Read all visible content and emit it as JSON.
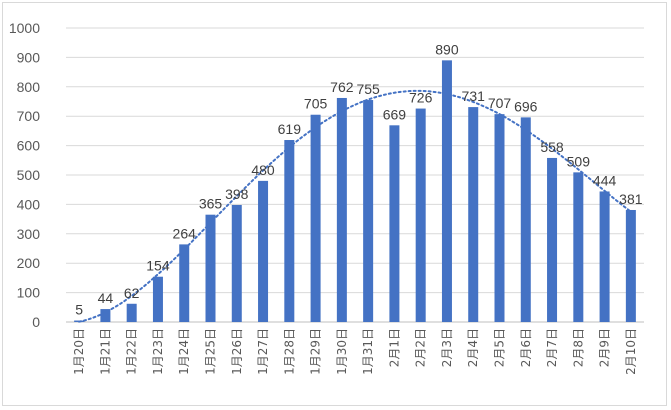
{
  "chart_data": {
    "type": "bar",
    "title": "",
    "xlabel": "",
    "ylabel": "",
    "ylim": [
      0,
      1000
    ],
    "yticks": [
      0,
      100,
      200,
      300,
      400,
      500,
      600,
      700,
      800,
      900,
      1000
    ],
    "grid": true,
    "legend": "none",
    "bar_color": "#4472c4",
    "trendline": {
      "style": "dotted",
      "color": "#4472c4",
      "type": "polynomial"
    },
    "categories": [
      "1月20日",
      "1月21日",
      "1月22日",
      "1月23日",
      "1月24日",
      "1月25日",
      "1月26日",
      "1月27日",
      "1月28日",
      "1月29日",
      "1月30日",
      "1月31日",
      "2月1日",
      "2月2日",
      "2月3日",
      "2月4日",
      "2月5日",
      "2月6日",
      "2月7日",
      "2月8日",
      "2月9日",
      "2月10日"
    ],
    "values": [
      5,
      44,
      62,
      154,
      264,
      365,
      398,
      480,
      619,
      705,
      762,
      755,
      669,
      726,
      890,
      731,
      707,
      696,
      558,
      509,
      444,
      381
    ],
    "data_labels": true
  }
}
